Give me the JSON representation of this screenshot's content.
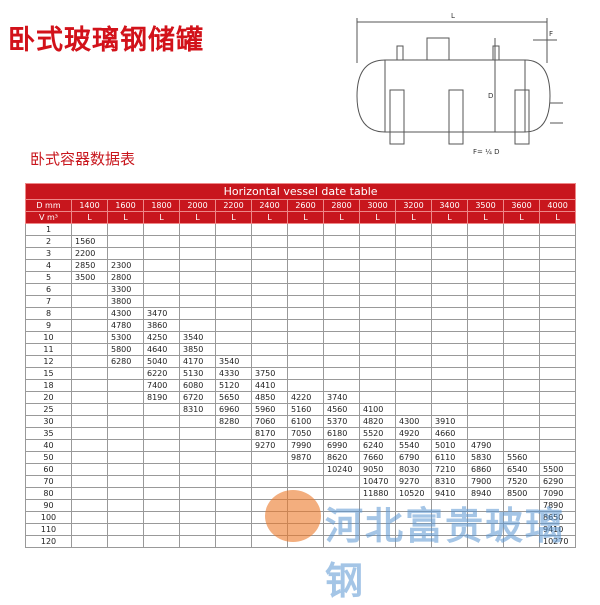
{
  "header": {
    "title": "卧式玻璃钢储罐",
    "subtitle": "卧式容器数据表"
  },
  "diagram": {
    "length": "L",
    "flange": "F",
    "diameter": "D",
    "formula": "F= ¼ D"
  },
  "table": {
    "title": "Horizontal vessel date table",
    "diameter_label": "D mm",
    "diameters": [
      "1400",
      "1600",
      "1800",
      "2000",
      "2200",
      "2400",
      "2600",
      "2800",
      "3000",
      "3200",
      "3400",
      "3500",
      "3600",
      "4000"
    ],
    "volume_label": "V m³",
    "unit": "L",
    "rows": [
      [
        "1",
        null,
        null,
        null,
        null,
        null,
        null,
        null,
        null,
        null,
        null,
        null,
        null,
        null,
        null
      ],
      [
        "2",
        "1560",
        null,
        null,
        null,
        null,
        null,
        null,
        null,
        null,
        null,
        null,
        null,
        null,
        null
      ],
      [
        "3",
        "2200",
        null,
        null,
        null,
        null,
        null,
        null,
        null,
        null,
        null,
        null,
        null,
        null,
        null
      ],
      [
        "4",
        "2850",
        "2300",
        null,
        null,
        null,
        null,
        null,
        null,
        null,
        null,
        null,
        null,
        null,
        null
      ],
      [
        "5",
        "3500",
        "2800",
        null,
        null,
        null,
        null,
        null,
        null,
        null,
        null,
        null,
        null,
        null,
        null
      ],
      [
        "6",
        null,
        "3300",
        null,
        null,
        null,
        null,
        null,
        null,
        null,
        null,
        null,
        null,
        null,
        null
      ],
      [
        "7",
        null,
        "3800",
        null,
        null,
        null,
        null,
        null,
        null,
        null,
        null,
        null,
        null,
        null,
        null
      ],
      [
        "8",
        null,
        "4300",
        "3470",
        null,
        null,
        null,
        null,
        null,
        null,
        null,
        null,
        null,
        null,
        null
      ],
      [
        "9",
        null,
        "4780",
        "3860",
        null,
        null,
        null,
        null,
        null,
        null,
        null,
        null,
        null,
        null,
        null
      ],
      [
        "10",
        null,
        "5300",
        "4250",
        "3540",
        null,
        null,
        null,
        null,
        null,
        null,
        null,
        null,
        null,
        null
      ],
      [
        "11",
        null,
        "5800",
        "4640",
        "3850",
        null,
        null,
        null,
        null,
        null,
        null,
        null,
        null,
        null,
        null
      ],
      [
        "12",
        null,
        "6280",
        "5040",
        "4170",
        "3540",
        null,
        null,
        null,
        null,
        null,
        null,
        null,
        null,
        null
      ],
      [
        "15",
        null,
        null,
        "6220",
        "5130",
        "4330",
        "3750",
        null,
        null,
        null,
        null,
        null,
        null,
        null,
        null
      ],
      [
        "18",
        null,
        null,
        "7400",
        "6080",
        "5120",
        "4410",
        null,
        null,
        null,
        null,
        null,
        null,
        null,
        null
      ],
      [
        "20",
        null,
        null,
        "8190",
        "6720",
        "5650",
        "4850",
        "4220",
        "3740",
        null,
        null,
        null,
        null,
        null,
        null
      ],
      [
        "25",
        null,
        null,
        null,
        "8310",
        "6960",
        "5960",
        "5160",
        "4560",
        "4100",
        null,
        null,
        null,
        null,
        null
      ],
      [
        "30",
        null,
        null,
        null,
        null,
        "8280",
        "7060",
        "6100",
        "5370",
        "4820",
        "4300",
        "3910",
        null,
        null,
        null
      ],
      [
        "35",
        null,
        null,
        null,
        null,
        null,
        "8170",
        "7050",
        "6180",
        "5520",
        "4920",
        "4660",
        null,
        null,
        null
      ],
      [
        "40",
        null,
        null,
        null,
        null,
        null,
        "9270",
        "7990",
        "6990",
        "6240",
        "5540",
        "5010",
        "4790",
        null,
        null
      ],
      [
        "50",
        null,
        null,
        null,
        null,
        null,
        null,
        "9870",
        "8620",
        "7660",
        "6790",
        "6110",
        "5830",
        "5560",
        null
      ],
      [
        "60",
        null,
        null,
        null,
        null,
        null,
        null,
        null,
        "10240",
        "9050",
        "8030",
        "7210",
        "6860",
        "6540",
        "5500"
      ],
      [
        "70",
        null,
        null,
        null,
        null,
        null,
        null,
        null,
        null,
        "10470",
        "9270",
        "8310",
        "7900",
        "7520",
        "6290"
      ],
      [
        "80",
        null,
        null,
        null,
        null,
        null,
        null,
        null,
        null,
        "11880",
        "10520",
        "9410",
        "8940",
        "8500",
        "7090"
      ],
      [
        "90",
        null,
        null,
        null,
        null,
        null,
        null,
        null,
        null,
        null,
        null,
        null,
        null,
        null,
        "7890"
      ],
      [
        "100",
        null,
        null,
        null,
        null,
        null,
        null,
        null,
        null,
        null,
        null,
        null,
        null,
        null,
        "8650"
      ],
      [
        "110",
        null,
        null,
        null,
        null,
        null,
        null,
        null,
        null,
        null,
        null,
        null,
        null,
        null,
        "9410"
      ],
      [
        "120",
        null,
        null,
        null,
        null,
        null,
        null,
        null,
        null,
        null,
        null,
        null,
        null,
        null,
        "10270"
      ]
    ]
  },
  "watermark": "河北富贵玻璃钢"
}
